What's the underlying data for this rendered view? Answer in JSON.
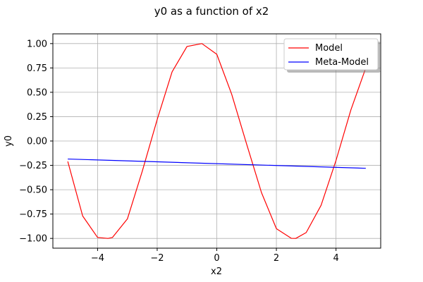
{
  "chart_data": {
    "type": "line",
    "title": "y0 as a function of x2",
    "xlabel": "x2",
    "ylabel": "y0",
    "xlim": [
      -5.5,
      5.5
    ],
    "ylim": [
      -1.1,
      1.1
    ],
    "xticks": [
      -4,
      -2,
      0,
      2,
      4
    ],
    "xtick_labels": [
      "−4",
      "−2",
      "0",
      "2",
      "4"
    ],
    "yticks": [
      -1.0,
      -0.75,
      -0.5,
      -0.25,
      0.0,
      0.25,
      0.5,
      0.75,
      1.0
    ],
    "ytick_labels": [
      "−1.00",
      "−0.75",
      "−0.50",
      "−0.25",
      "0.00",
      "0.25",
      "0.50",
      "0.75",
      "1.00"
    ],
    "grid": true,
    "legend_position": "top-right",
    "series": [
      {
        "name": "Model",
        "color": "#ff0000",
        "x": [
          -5.0,
          -4.5,
          -4.0,
          -3.65,
          -3.5,
          -3.0,
          -2.5,
          -2.0,
          -1.5,
          -1.0,
          -0.5,
          0.0,
          0.5,
          1.0,
          1.5,
          2.0,
          2.5,
          2.65,
          3.0,
          3.5,
          4.0,
          4.5,
          5.0
        ],
        "y": [
          -0.21,
          -0.77,
          -0.99,
          -1.0,
          -0.99,
          -0.8,
          -0.31,
          0.22,
          0.71,
          0.97,
          1.0,
          0.89,
          0.48,
          -0.03,
          -0.53,
          -0.9,
          -0.999,
          -1.0,
          -0.94,
          -0.66,
          -0.2,
          0.32,
          0.75
        ]
      },
      {
        "name": "Meta-Model",
        "color": "#0000ff",
        "x": [
          -5.0,
          5.0
        ],
        "y": [
          -0.185,
          -0.28
        ]
      }
    ]
  }
}
